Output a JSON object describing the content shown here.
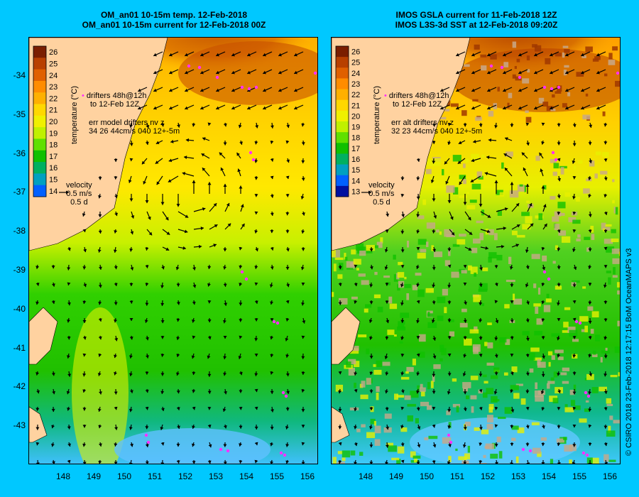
{
  "left_panel": {
    "title_line1": "OM_an01 10-15m temp. 12-Feb-2018",
    "title_line2": "OM_an01 10-15m current for 12-Feb-2018 00Z",
    "drifters_text_1": "drifters 48h@12h",
    "drifters_text_2": "to 12-Feb 12Z",
    "err_text_1": "err model drifters nv z",
    "err_text_2": "34 26 44cm/s 040 12+-5m",
    "velocity_label": "velocity",
    "velocity_scale": "0.5 m/s",
    "velocity_time": "0.5 d",
    "colorbar_ticks": [
      "26",
      "25",
      "24",
      "23",
      "22",
      "21",
      "20",
      "19",
      "18",
      "17",
      "16",
      "15",
      "14"
    ]
  },
  "right_panel": {
    "title_line1": "IMOS GSLA current for 11-Feb-2018 12Z",
    "title_line2": "IMOS L3S-3d SST at 12-Feb-2018 09:20Z",
    "drifters_text_1": "drifters 48h@12h",
    "drifters_text_2": "to 12-Feb 12Z",
    "err_text_1": "err alt drifters nv z",
    "err_text_2": "32 23 44cm/s 040 12+-5m",
    "velocity_label": "velocity",
    "velocity_scale": "0.5 m/s",
    "velocity_time": "0.5 d",
    "colorbar_ticks": [
      "26",
      "25",
      "24",
      "23",
      "22",
      "21",
      "20",
      "19",
      "18",
      "17",
      "16",
      "15",
      "14",
      "13"
    ]
  },
  "colorbar_title": "temperature (°C)",
  "latitude_labels": [
    "-34",
    "-35",
    "-36",
    "-37",
    "-38",
    "-39",
    "-40",
    "-41",
    "-42",
    "-43"
  ],
  "longitude_labels": [
    "148",
    "149",
    "150",
    "151",
    "152",
    "153",
    "154",
    "155",
    "156"
  ],
  "credit": "© CSIRO 2018  23-Feb-2018 12:17:15 BoM OceanMAPS v3",
  "colors": {
    "background": "#00c8ff",
    "land": "#ffd2a0",
    "missing": "#c8a888",
    "drifter": "#ff30ff"
  }
}
